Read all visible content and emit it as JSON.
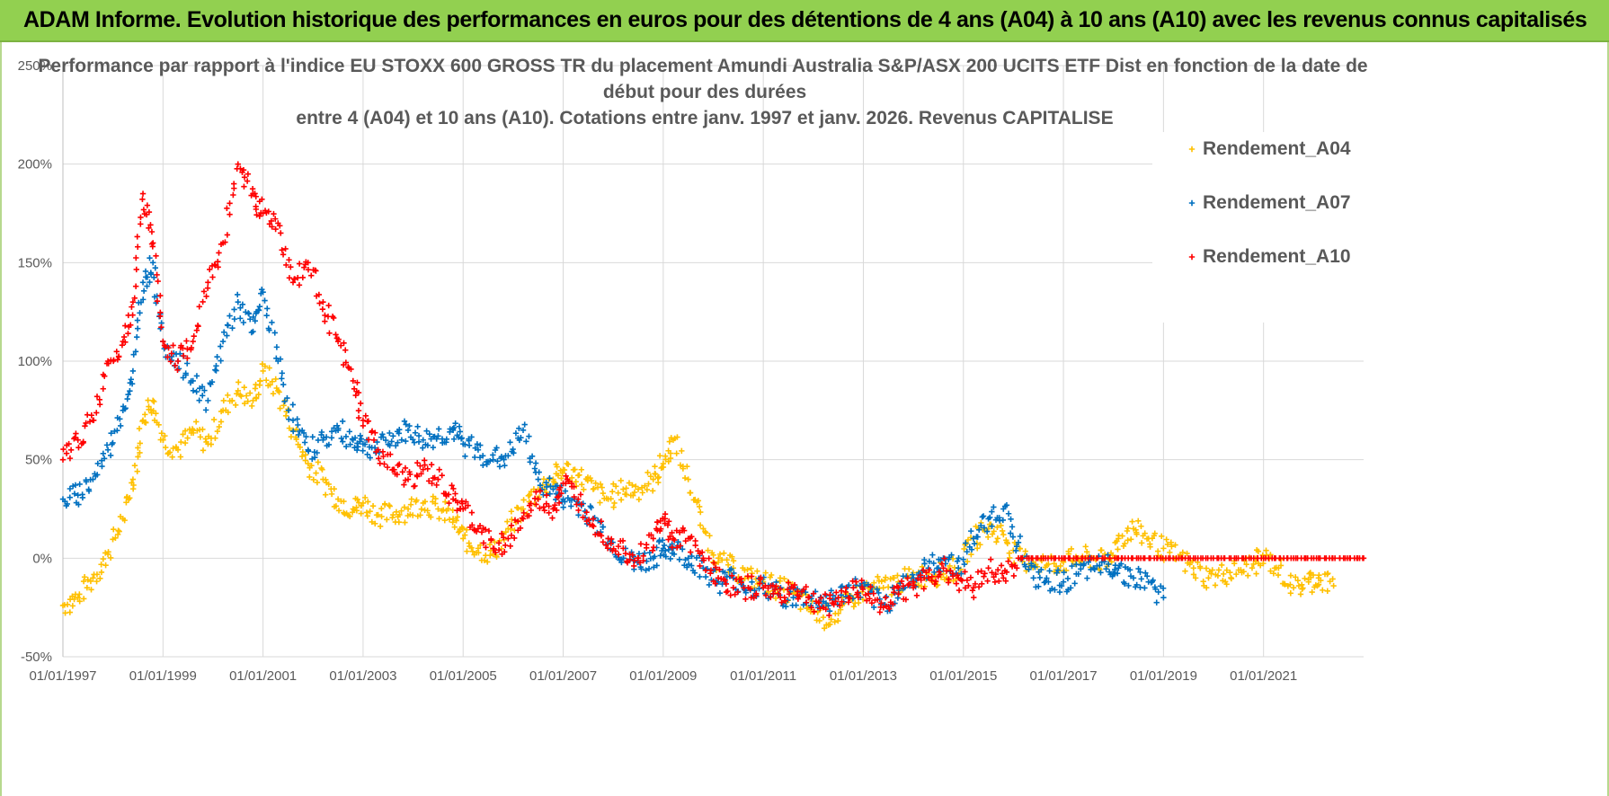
{
  "banner": {
    "title": "ADAM Informe. Evolution historique des performances en euros pour des détentions de 4 ans (A04) à 10 ans (A10) avec les revenus connus capitalisés"
  },
  "chart_data": {
    "type": "scatter",
    "title_lines": [
      "Performance par rapport à l'indice EU STOXX 600 GROSS TR  du placement Amundi Australia S&P/ASX 200 UCITS ETF Dist en fonction de la date de",
      "début pour des durées",
      "entre 4 (A04) et 10 ans (A10).  Cotations entre janv. 1997 et janv. 2026. Revenus CAPITALISE"
    ],
    "xlabel": "",
    "ylabel": "",
    "xlim": [
      1997.0,
      2023.0
    ],
    "ylim": [
      -50,
      250
    ],
    "x_ticks": [
      {
        "value": 1997,
        "label": "01/01/1997"
      },
      {
        "value": 1999,
        "label": "01/01/1999"
      },
      {
        "value": 2001,
        "label": "01/01/2001"
      },
      {
        "value": 2003,
        "label": "01/01/2003"
      },
      {
        "value": 2005,
        "label": "01/01/2005"
      },
      {
        "value": 2007,
        "label": "01/01/2007"
      },
      {
        "value": 2009,
        "label": "01/01/2009"
      },
      {
        "value": 2011,
        "label": "01/01/2011"
      },
      {
        "value": 2013,
        "label": "01/01/2013"
      },
      {
        "value": 2015,
        "label": "01/01/2015"
      },
      {
        "value": 2017,
        "label": "01/01/2017"
      },
      {
        "value": 2019,
        "label": "01/01/2019"
      },
      {
        "value": 2021,
        "label": "01/01/2021"
      }
    ],
    "y_ticks": [
      {
        "value": 250,
        "label": "250%"
      },
      {
        "value": 200,
        "label": "200%"
      },
      {
        "value": 150,
        "label": "150%"
      },
      {
        "value": 100,
        "label": "100%"
      },
      {
        "value": 50,
        "label": "50%"
      },
      {
        "value": 0,
        "label": "0%"
      },
      {
        "value": -50,
        "label": "-50%"
      }
    ],
    "grid": true,
    "legend_position": "top-right",
    "marker": "+",
    "series": [
      {
        "name": "Rendement_A04",
        "color": "#ffc000",
        "x": [
          1997.0,
          1997.3,
          1997.6,
          1997.9,
          1998.2,
          1998.4,
          1998.6,
          1998.8,
          1999.0,
          1999.3,
          1999.6,
          1999.9,
          2000.2,
          2000.5,
          2000.8,
          2001.0,
          2001.3,
          2001.6,
          2001.9,
          2002.2,
          2002.5,
          2002.8,
          2003.0,
          2003.3,
          2003.6,
          2003.9,
          2004.2,
          2004.5,
          2004.8,
          2005.0,
          2005.3,
          2005.6,
          2005.9,
          2006.2,
          2006.5,
          2006.8,
          2007.0,
          2007.3,
          2007.6,
          2007.9,
          2008.2,
          2008.5,
          2008.8,
          2009.0,
          2009.2,
          2009.5,
          2009.8,
          2010.1,
          2010.4,
          2010.7,
          2011.0,
          2011.3,
          2011.6,
          2011.9,
          2012.2,
          2012.5,
          2012.8,
          2013.1,
          2013.4,
          2013.7,
          2014.0,
          2014.3,
          2014.6,
          2014.9,
          2015.2,
          2015.5,
          2015.8,
          2016.1,
          2016.4,
          2016.7,
          2017.0,
          2017.3,
          2017.6,
          2017.9,
          2018.1,
          2018.4,
          2018.7,
          2019.0,
          2019.3,
          2019.6,
          2019.9,
          2020.2,
          2020.5,
          2020.8,
          2021.0,
          2021.3,
          2021.6,
          2021.9,
          2022.1,
          2022.4
        ],
        "y": [
          -24,
          -20,
          -10,
          2,
          20,
          40,
          70,
          80,
          60,
          55,
          65,
          58,
          75,
          85,
          80,
          95,
          85,
          65,
          48,
          40,
          30,
          25,
          28,
          22,
          22,
          25,
          28,
          25,
          20,
          10,
          5,
          2,
          15,
          25,
          35,
          40,
          45,
          42,
          35,
          30,
          35,
          35,
          40,
          48,
          60,
          40,
          15,
          -2,
          -5,
          -10,
          -12,
          -15,
          -18,
          -25,
          -30,
          -28,
          -20,
          -15,
          -15,
          -12,
          -10,
          -8,
          -8,
          -5,
          10,
          15,
          12,
          0,
          -2,
          -3,
          -2,
          0,
          0,
          -3,
          10,
          15,
          10,
          5,
          0,
          -5,
          -10,
          -8,
          -6,
          -3,
          0,
          -5,
          -15,
          -12,
          -10,
          -14
        ]
      },
      {
        "name": "Rendement_A07",
        "color": "#0070c0",
        "x": [
          1997.0,
          1997.3,
          1997.6,
          1997.9,
          1998.2,
          1998.4,
          1998.6,
          1998.8,
          1999.0,
          1999.3,
          1999.6,
          1999.9,
          2000.2,
          2000.5,
          2000.8,
          2001.0,
          2001.3,
          2001.6,
          2001.9,
          2002.2,
          2002.5,
          2002.8,
          2003.0,
          2003.3,
          2003.6,
          2003.9,
          2004.2,
          2004.5,
          2004.8,
          2005.0,
          2005.3,
          2005.6,
          2005.9,
          2006.2,
          2006.5,
          2006.8,
          2007.0,
          2007.3,
          2007.6,
          2007.9,
          2008.2,
          2008.5,
          2008.8,
          2009.0,
          2009.2,
          2009.5,
          2009.8,
          2010.1,
          2010.4,
          2010.7,
          2011.0,
          2011.3,
          2011.6,
          2011.9,
          2012.2,
          2012.5,
          2012.8,
          2013.1,
          2013.4,
          2013.7,
          2014.0,
          2014.3,
          2014.6,
          2014.9,
          2015.2,
          2015.5,
          2015.8,
          2016.1,
          2016.4,
          2016.7,
          2017.0,
          2017.3,
          2017.6,
          2017.9,
          2018.1,
          2018.4,
          2018.7,
          2019.0
        ],
        "y": [
          30,
          32,
          40,
          55,
          75,
          95,
          140,
          150,
          110,
          100,
          90,
          80,
          110,
          130,
          115,
          135,
          100,
          70,
          55,
          60,
          65,
          60,
          58,
          55,
          62,
          65,
          60,
          62,
          65,
          58,
          55,
          50,
          52,
          65,
          40,
          35,
          30,
          28,
          20,
          10,
          0,
          -2,
          0,
          5,
          5,
          0,
          -5,
          -12,
          -10,
          -15,
          -15,
          -18,
          -20,
          -20,
          -22,
          -20,
          -15,
          -18,
          -25,
          -15,
          -10,
          -5,
          0,
          -5,
          10,
          20,
          25,
          8,
          -10,
          -12,
          -12,
          -8,
          -5,
          -3,
          -5,
          -10,
          -12,
          -20
        ]
      },
      {
        "name": "Rendement_A10",
        "color": "#ff0000",
        "x": [
          1997.0,
          1997.3,
          1997.6,
          1997.9,
          1998.2,
          1998.4,
          1998.6,
          1998.8,
          1999.0,
          1999.3,
          1999.6,
          1999.9,
          2000.2,
          2000.5,
          2000.8,
          2001.0,
          2001.3,
          2001.6,
          2001.9,
          2002.2,
          2002.5,
          2002.8,
          2003.0,
          2003.3,
          2003.6,
          2003.9,
          2004.2,
          2004.5,
          2004.8,
          2005.0,
          2005.3,
          2005.6,
          2005.9,
          2006.2,
          2006.5,
          2006.8,
          2007.0,
          2007.3,
          2007.6,
          2007.9,
          2008.2,
          2008.5,
          2008.8,
          2009.0,
          2009.2,
          2009.5,
          2009.8,
          2010.1,
          2010.4,
          2010.7,
          2011.0,
          2011.3,
          2011.6,
          2011.9,
          2012.2,
          2012.5,
          2012.8,
          2013.1,
          2013.4,
          2013.7,
          2014.0,
          2014.3,
          2014.6,
          2014.9,
          2015.2,
          2015.5,
          2015.8,
          2016.1,
          2016.6,
          2017.1,
          2017.6,
          2018.1,
          2018.6,
          2019.1,
          2019.6,
          2020.1,
          2020.6,
          2021.1,
          2021.6,
          2022.1,
          2022.6,
          2023.0
        ],
        "y": [
          50,
          60,
          70,
          100,
          110,
          130,
          185,
          160,
          110,
          100,
          110,
          140,
          160,
          200,
          185,
          175,
          170,
          140,
          150,
          130,
          110,
          90,
          70,
          55,
          45,
          40,
          45,
          40,
          30,
          25,
          15,
          5,
          10,
          20,
          30,
          25,
          38,
          30,
          20,
          10,
          5,
          0,
          10,
          20,
          10,
          10,
          0,
          -10,
          -15,
          -15,
          -15,
          -18,
          -15,
          -20,
          -25,
          -20,
          -15,
          -18,
          -25,
          -15,
          -15,
          -10,
          -5,
          -10,
          -15,
          -5,
          -10,
          0,
          0,
          0,
          0,
          0,
          0,
          0,
          0,
          0,
          0,
          0,
          0,
          0,
          0,
          0
        ]
      }
    ]
  }
}
